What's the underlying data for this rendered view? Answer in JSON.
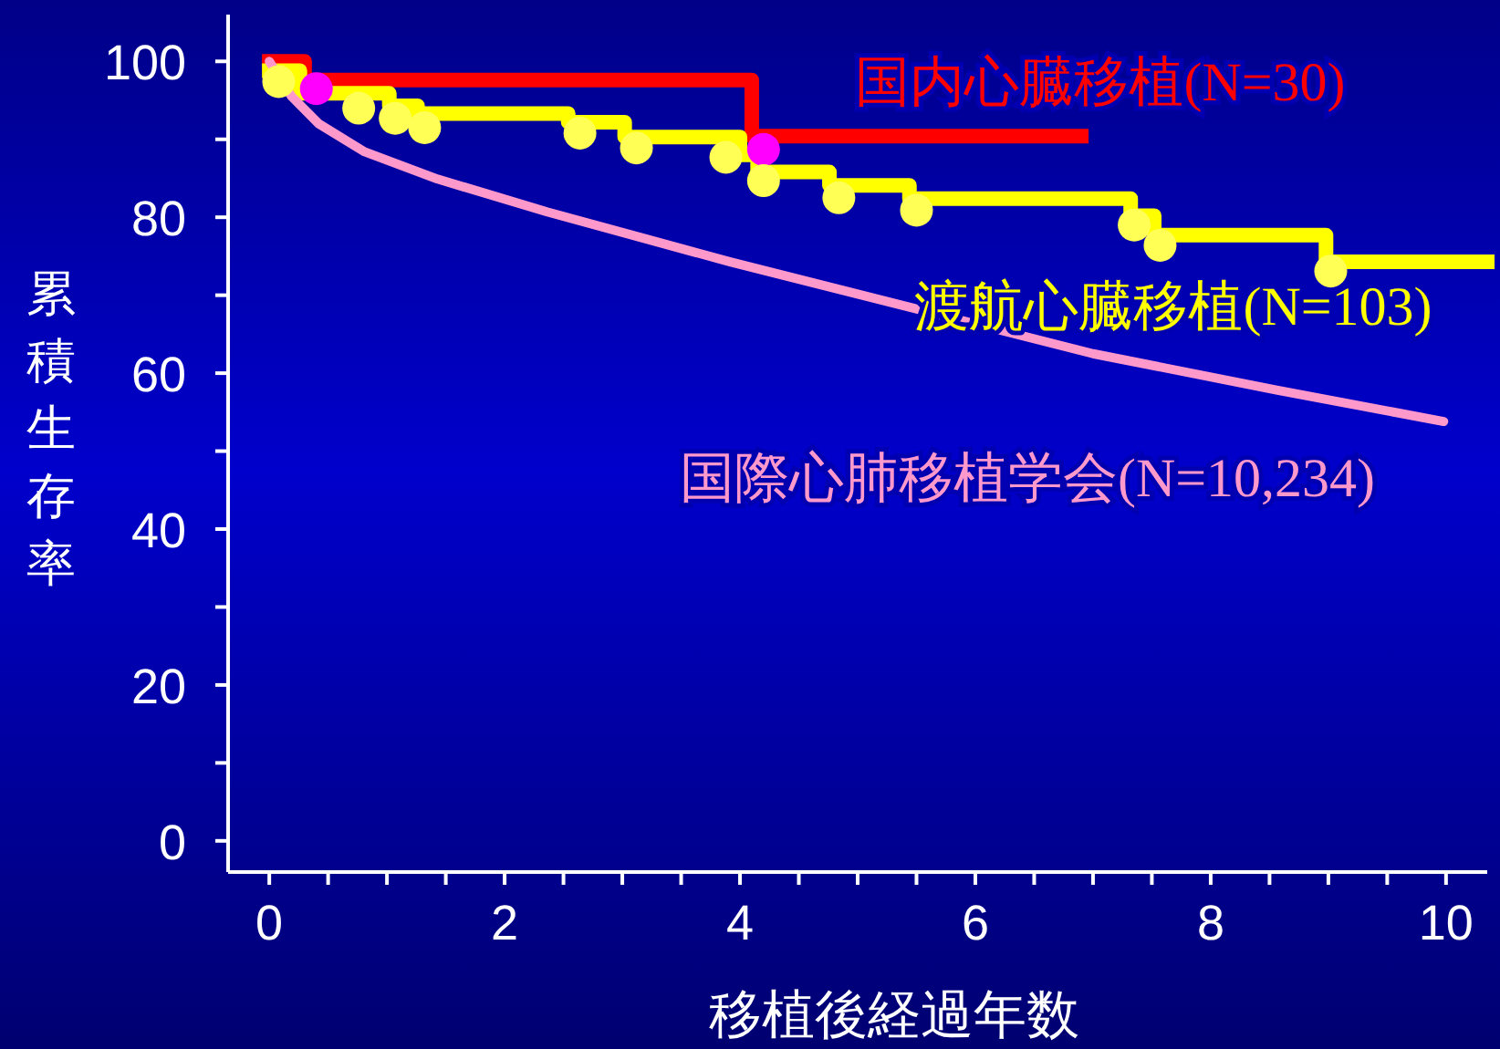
{
  "chart_data": {
    "type": "step",
    "xlabel": "移植後経過年数",
    "ylabel": "累積生存率",
    "xlim": [
      -0.35,
      10.35
    ],
    "ylim": [
      -4,
      106
    ],
    "xticks": [
      0,
      {
        "value": 0.5,
        "label": null
      },
      {
        "value": 1,
        "label": null
      },
      {
        "value": 1.5,
        "label": null
      },
      2,
      {
        "value": 2.5,
        "label": null
      },
      {
        "value": 3,
        "label": null
      },
      {
        "value": 3.5,
        "label": null
      },
      4,
      {
        "value": 4.5,
        "label": null
      },
      {
        "value": 5,
        "label": null
      },
      {
        "value": 5.5,
        "label": null
      },
      6,
      {
        "value": 6.5,
        "label": null
      },
      {
        "value": 7,
        "label": null
      },
      {
        "value": 7.5,
        "label": null
      },
      8,
      {
        "value": 8.5,
        "label": null
      },
      {
        "value": 9,
        "label": null
      },
      {
        "value": 9.5,
        "label": null
      },
      10
    ],
    "yticks": [
      0,
      {
        "value": 10,
        "label": null
      },
      20,
      {
        "value": 30,
        "label": null
      },
      40,
      {
        "value": 50,
        "label": null
      },
      60,
      {
        "value": 70,
        "label": null
      },
      80,
      {
        "value": 90,
        "label": null
      },
      100
    ],
    "grid": false,
    "series": [
      {
        "name": "国内心臓移植(N=30)",
        "color": "#ff0000",
        "x": [
          0,
          0.3,
          4.1,
          6.9
        ],
        "values": [
          100,
          97.6,
          90.4,
          90.4
        ]
      },
      {
        "type": "scatter",
        "marker": "circle",
        "color": "#ff00ff",
        "x": [
          0.4,
          4.2
        ],
        "values": [
          96.5,
          88.7
        ]
      },
      {
        "name": "渡航心臓移植(N=103)",
        "color": "#ffff00",
        "x": [
          0,
          0.26,
          1.02,
          1.26,
          2.54,
          3.02,
          4.0,
          4.15,
          4.76,
          5.44,
          7.32,
          7.52,
          8.98,
          10.35
        ],
        "values": [
          98.8,
          95.9,
          94.3,
          93.3,
          92.2,
          90.3,
          88,
          85.8,
          84.1,
          82.4,
          80.2,
          77.7,
          74.3,
          74.3
        ]
      },
      {
        "type": "scatter",
        "marker": "circle",
        "color": "#ffff55",
        "x": [
          0.08,
          0.76,
          1.07,
          1.32,
          2.64,
          3.12,
          3.88,
          4.2,
          4.84,
          5.5,
          7.35,
          7.57,
          9.02
        ],
        "values": [
          97.4,
          94,
          92.7,
          91.5,
          90.8,
          88.9,
          87.7,
          84.7,
          82.5,
          80.9,
          79,
          76.4,
          73.1
        ]
      },
      {
        "name": "国際心肺移植学会(N=10,234)",
        "type": "line",
        "color": "#ff99cc",
        "x": [
          0,
          0.19,
          0.42,
          0.81,
          1.43,
          2.36,
          3.91,
          5.46,
          7.0,
          8.57,
          9.98
        ],
        "values": [
          100,
          95.5,
          92,
          88.4,
          84.9,
          80.7,
          74.3,
          68.4,
          62.5,
          57.8,
          53.8
        ]
      }
    ]
  }
}
